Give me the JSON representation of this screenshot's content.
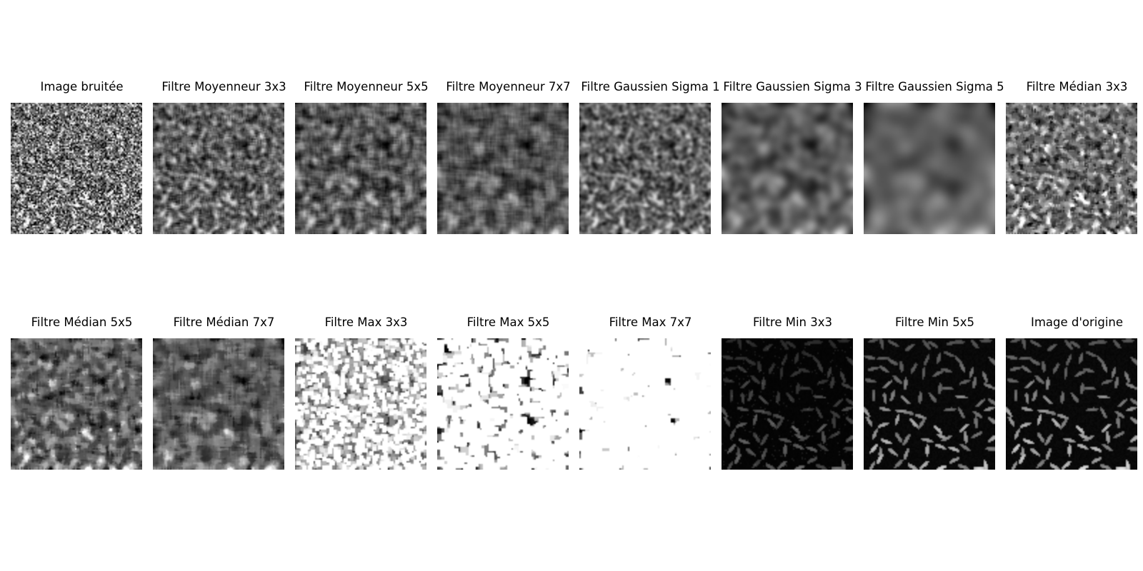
{
  "figure": {
    "rows": [
      {
        "panels": [
          {
            "title": "Image bruitée",
            "kind": "noisy"
          },
          {
            "title": "Filtre Moyenneur 3x3",
            "kind": "mean3"
          },
          {
            "title": "Filtre Moyenneur 5x5",
            "kind": "mean5"
          },
          {
            "title": "Filtre Moyenneur 7x7",
            "kind": "mean7"
          },
          {
            "title": "Filtre Gaussien Sigma 1",
            "kind": "gauss1"
          },
          {
            "title": "Filtre Gaussien Sigma 3",
            "kind": "gauss3"
          },
          {
            "title": "Filtre Gaussien Sigma 5",
            "kind": "gauss5"
          },
          {
            "title": "Filtre Médian 3x3",
            "kind": "median3"
          }
        ]
      },
      {
        "panels": [
          {
            "title": "Filtre Médian 5x5",
            "kind": "median5"
          },
          {
            "title": "Filtre Médian 7x7",
            "kind": "median7"
          },
          {
            "title": "Filtre Max 3x3",
            "kind": "max3"
          },
          {
            "title": "Filtre Max 5x5",
            "kind": "max5"
          },
          {
            "title": "Filtre Max 7x7",
            "kind": "max7"
          },
          {
            "title": "Filtre Min 3x3",
            "kind": "min3"
          },
          {
            "title": "Filtre Min 5x5",
            "kind": "min5"
          },
          {
            "title": "Image d'origine",
            "kind": "original"
          }
        ]
      }
    ]
  }
}
